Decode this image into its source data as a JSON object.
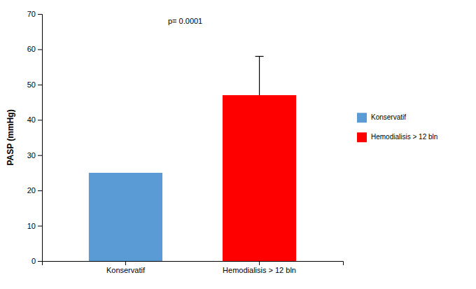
{
  "chart_data": {
    "type": "bar",
    "categories": [
      "Konservatif",
      "Hemodialisis > 12 bln"
    ],
    "values": [
      25.0,
      47.0
    ],
    "colors": [
      "#5b9bd5",
      "#ff0000"
    ],
    "error_upper": [
      null,
      11.0
    ],
    "error_lower": [
      null,
      0.0
    ],
    "ylabel": "PASP (mmHg)",
    "ylim": [
      0,
      70
    ],
    "yticks": [
      0,
      10,
      20,
      30,
      40,
      50,
      60,
      70
    ],
    "annotation": "p= 0.0001",
    "legend": "right",
    "grid": false
  }
}
